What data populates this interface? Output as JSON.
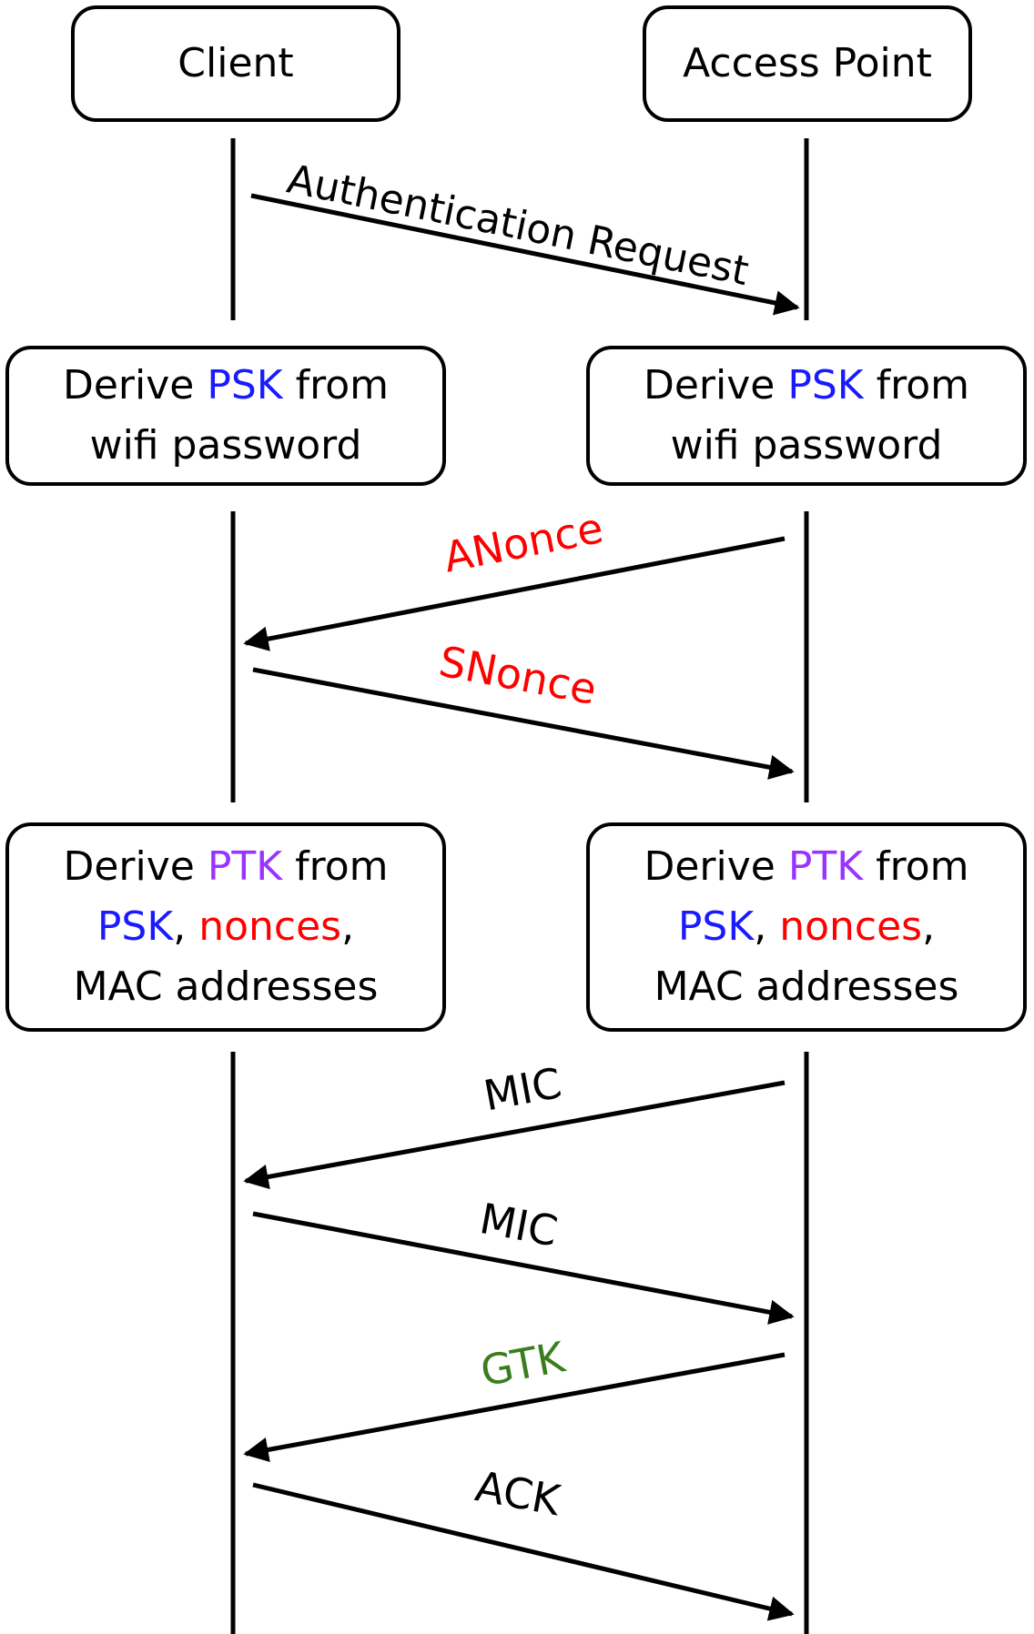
{
  "participants": {
    "client": "Client",
    "access_point": "Access Point"
  },
  "colors": {
    "psk": "#1a1aff",
    "ptk": "#9933ff",
    "nonce": "#ff0000",
    "gtk": "#3a7d1e",
    "default": "#000000"
  },
  "steps": {
    "derive_psk": {
      "client": {
        "line1_a": "Derive ",
        "line1_psk": "PSK",
        "line1_b": " from",
        "line2": "wifi password"
      },
      "access_point": {
        "line1_a": "Derive ",
        "line1_psk": "PSK",
        "line1_b": " from",
        "line2": "wifi password"
      }
    },
    "derive_ptk": {
      "client": {
        "line1_a": "Derive ",
        "line1_ptk": "PTK",
        "line1_b": " from",
        "line2_psk": "PSK",
        "line2_sep": ", ",
        "line2_nonces": "nonces",
        "line2_end": ",",
        "line3": "MAC addresses"
      },
      "access_point": {
        "line1_a": "Derive ",
        "line1_ptk": "PTK",
        "line1_b": " from",
        "line2_psk": "PSK",
        "line2_sep": ", ",
        "line2_nonces": "nonces",
        "line2_end": ",",
        "line3": "MAC addresses"
      }
    }
  },
  "messages": [
    {
      "label": "Authentication Request",
      "direction": "client-to-ap",
      "color": "#000000"
    },
    {
      "label": "ANonce",
      "direction": "ap-to-client",
      "color": "#ff0000"
    },
    {
      "label": "SNonce",
      "direction": "client-to-ap",
      "color": "#ff0000"
    },
    {
      "label": "MIC",
      "direction": "ap-to-client",
      "color": "#000000"
    },
    {
      "label": "MIC",
      "direction": "client-to-ap",
      "color": "#000000"
    },
    {
      "label": "GTK",
      "direction": "ap-to-client",
      "color": "#3a7d1e"
    },
    {
      "label": "ACK",
      "direction": "client-to-ap",
      "color": "#000000"
    }
  ]
}
